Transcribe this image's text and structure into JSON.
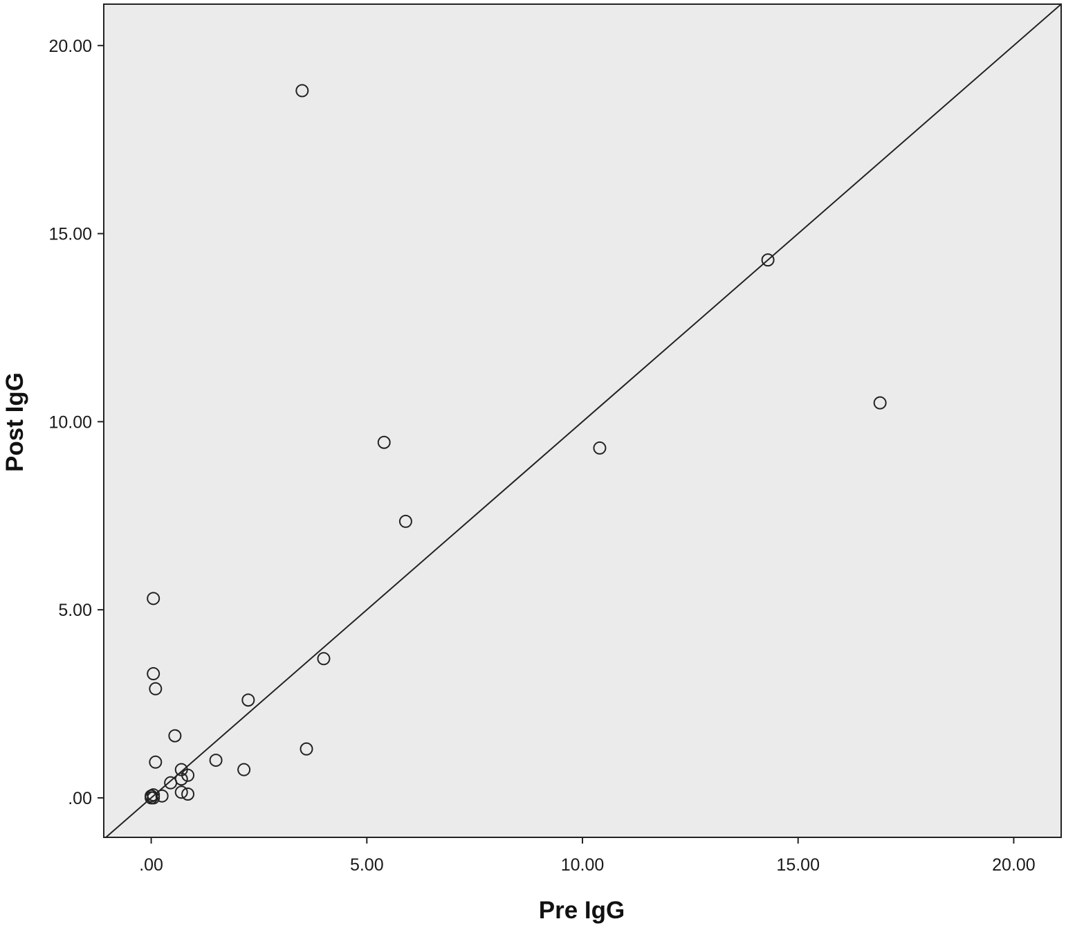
{
  "chart_data": {
    "type": "scatter",
    "title": "",
    "xlabel": "Pre IgG",
    "ylabel": "Post IgG",
    "xlim": [
      -1.1,
      21.1
    ],
    "ylim": [
      -1.05,
      21.1
    ],
    "grid": false,
    "legend": "none",
    "x_ticks": [
      {
        "value": 0,
        "label": ".00"
      },
      {
        "value": 5,
        "label": "5.00"
      },
      {
        "value": 10,
        "label": "10.00"
      },
      {
        "value": 15,
        "label": "15.00"
      },
      {
        "value": 20,
        "label": "20.00"
      }
    ],
    "y_ticks": [
      {
        "value": 0,
        "label": ".00"
      },
      {
        "value": 5,
        "label": "5.00"
      },
      {
        "value": 10,
        "label": "10.00"
      },
      {
        "value": 15,
        "label": "15.00"
      },
      {
        "value": 20,
        "label": "20.00"
      }
    ],
    "reference_line": {
      "type": "identity",
      "slope": 1,
      "intercept": 0
    },
    "series": [
      {
        "points": [
          {
            "x": 3.5,
            "y": 18.8
          },
          {
            "x": 14.3,
            "y": 14.3
          },
          {
            "x": 16.9,
            "y": 10.5
          },
          {
            "x": 10.4,
            "y": 9.3
          },
          {
            "x": 5.4,
            "y": 9.45
          },
          {
            "x": 5.9,
            "y": 7.35
          },
          {
            "x": 0.05,
            "y": 5.3
          },
          {
            "x": 4.0,
            "y": 3.7
          },
          {
            "x": 0.05,
            "y": 3.3
          },
          {
            "x": 0.1,
            "y": 2.9
          },
          {
            "x": 2.25,
            "y": 2.6
          },
          {
            "x": 0.55,
            "y": 1.65
          },
          {
            "x": 3.6,
            "y": 1.3
          },
          {
            "x": 0.1,
            "y": 0.95
          },
          {
            "x": 1.5,
            "y": 1.0
          },
          {
            "x": 2.15,
            "y": 0.75
          },
          {
            "x": 0.7,
            "y": 0.75
          },
          {
            "x": 0.85,
            "y": 0.6
          },
          {
            "x": 0.7,
            "y": 0.5
          },
          {
            "x": 0.45,
            "y": 0.4
          },
          {
            "x": 0.7,
            "y": 0.15
          },
          {
            "x": 0.85,
            "y": 0.1
          },
          {
            "x": 0.25,
            "y": 0.05
          },
          {
            "x": 0.05,
            "y": 0.08
          },
          {
            "x": 0.0,
            "y": 0.05
          },
          {
            "x": 0.05,
            "y": 0.0
          },
          {
            "x": 0.0,
            "y": 0.0
          }
        ]
      }
    ]
  },
  "colors": {
    "plot_background": "#ebebeb",
    "axis_line": "#222222",
    "marker_stroke": "#222222",
    "reference_line": "#222222"
  }
}
